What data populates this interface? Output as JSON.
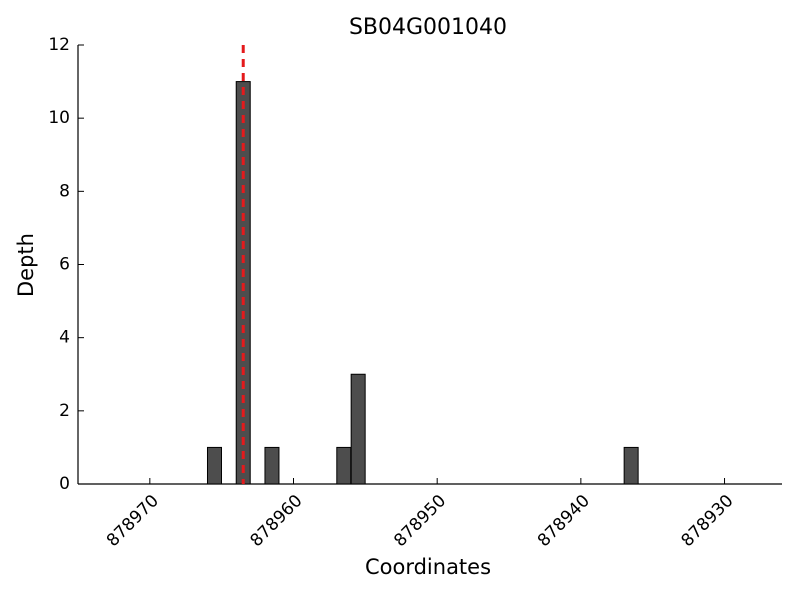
{
  "chart_data": {
    "type": "bar",
    "title": "SB04G001040",
    "x_label": "Coordinates",
    "y_label": "Depth",
    "x": [
      878965.5,
      878963.5,
      878961.5,
      878956.5,
      878955.5,
      878936.5
    ],
    "values": [
      1,
      11,
      1,
      1,
      3,
      1
    ],
    "color": "#4d4d4d",
    "xlim": [
      878975,
      878926
    ],
    "xticks": [
      878970,
      878960,
      878950,
      878940,
      878930
    ],
    "ylim": [
      0,
      12
    ],
    "yticks": [
      0,
      2,
      4,
      6,
      8,
      10,
      12
    ],
    "vline": 878963.5,
    "vline_color": "#e41a1c"
  }
}
